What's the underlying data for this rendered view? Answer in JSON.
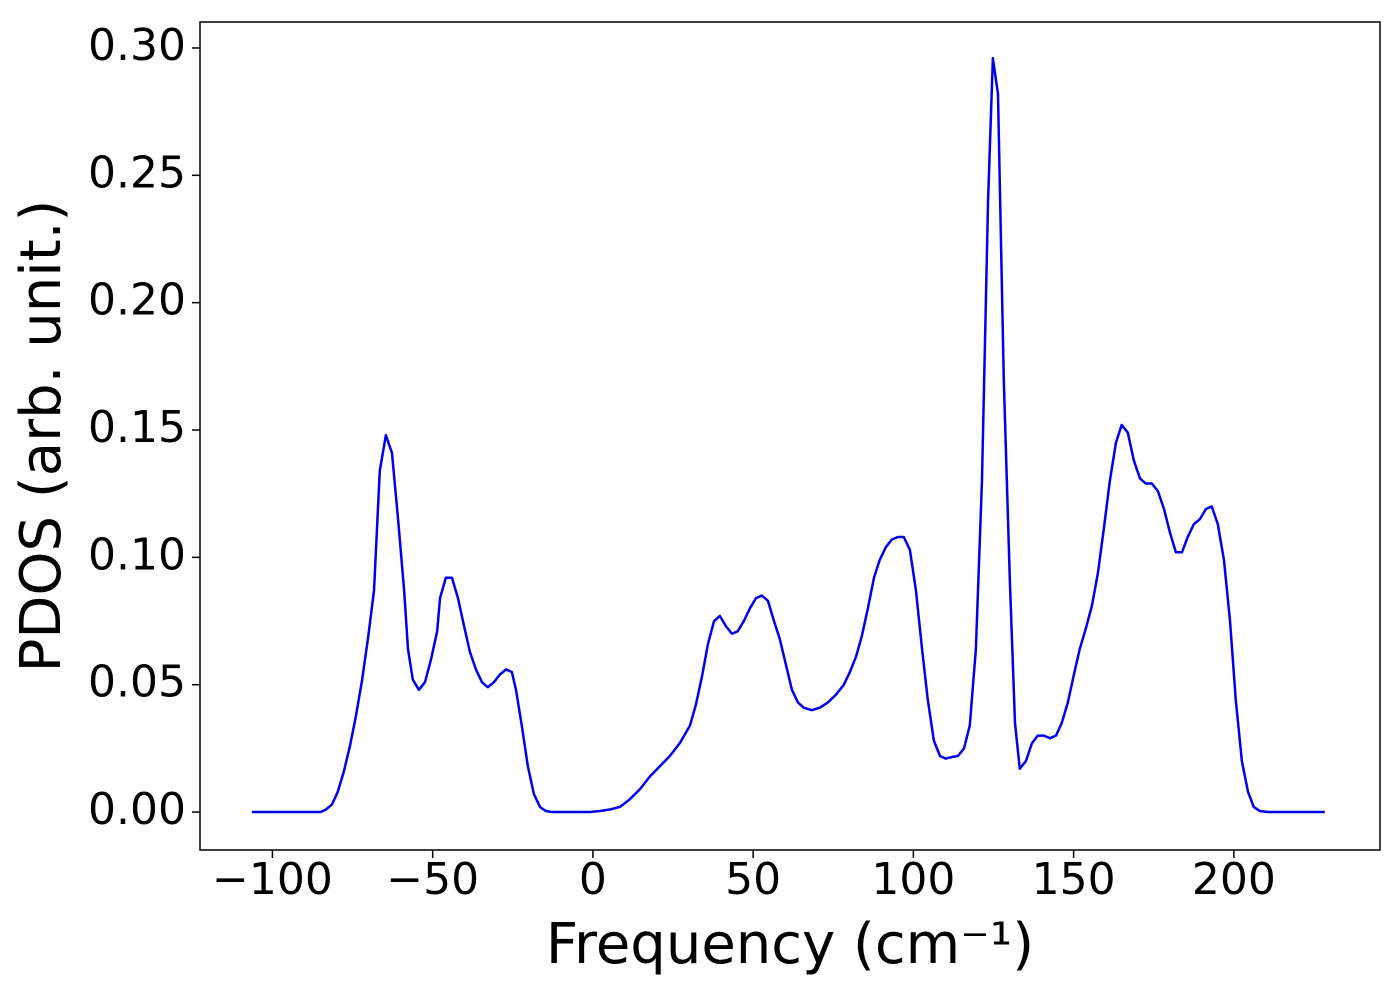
{
  "chart_data": {
    "type": "line",
    "xlabel": "Frequency (cm⁻¹)",
    "ylabel": "PDOS (arb. unit.)",
    "x": [
      -106.4,
      -85,
      -83.3,
      -81.4,
      -79.6,
      -77.7,
      -75.8,
      -73.9,
      -72,
      -70.2,
      -68.3,
      -66.5,
      -64.6,
      -62.7,
      -60.8,
      -58.9,
      -57.7,
      -56.2,
      -54.3,
      -52.4,
      -50.5,
      -48.6,
      -47.7,
      -45.9,
      -44,
      -42.1,
      -40.2,
      -38.4,
      -36.5,
      -34.6,
      -32.8,
      -30.9,
      -29,
      -27.1,
      -25.3,
      -24,
      -22.2,
      -20.3,
      -18.4,
      -16.5,
      -14.7,
      -12.8,
      -1,
      2.2,
      5.3,
      8.4,
      11.5,
      14.7,
      17.8,
      20.9,
      24,
      27.1,
      30.3,
      32.1,
      34,
      35.9,
      37.8,
      39.6,
      41.5,
      43.4,
      45.2,
      47.1,
      49,
      50.9,
      52.7,
      54.6,
      56.5,
      58.3,
      60.2,
      62.1,
      64,
      65.8,
      68.3,
      70.8,
      73.3,
      75.8,
      78.3,
      80.2,
      82.1,
      83.9,
      85.8,
      87.7,
      89.5,
      91.4,
      93.3,
      95.2,
      97,
      98.9,
      100.8,
      102.7,
      104.5,
      106.4,
      108.3,
      110.1,
      112,
      113.9,
      115.8,
      117.6,
      119.5,
      121.4,
      123.3,
      124.8,
      126.4,
      128.2,
      130.1,
      131.7,
      133.2,
      135.1,
      137,
      138.8,
      140.7,
      142.6,
      144.5,
      146.3,
      148.2,
      150.1,
      151.9,
      153.8,
      155.7,
      157.6,
      159.4,
      161.3,
      163.2,
      165,
      166.9,
      168.8,
      170.7,
      172.5,
      174.4,
      176.3,
      178.2,
      180,
      181.9,
      183.8,
      185.6,
      187.5,
      189.4,
      191.3,
      193.1,
      195,
      196.9,
      198.8,
      200.6,
      202.5,
      204.4,
      206.2,
      208.1,
      210.6,
      228.4
    ],
    "series": [
      {
        "name": "PDOS",
        "color": "#0000ee",
        "values": [
          0,
          0,
          0.001,
          0.003,
          0.008,
          0.016,
          0.026,
          0.038,
          0.052,
          0.068,
          0.087,
          0.134,
          0.148,
          0.141,
          0.115,
          0.087,
          0.064,
          0.052,
          0.048,
          0.051,
          0.06,
          0.071,
          0.084,
          0.092,
          0.092,
          0.084,
          0.073,
          0.063,
          0.056,
          0.051,
          0.049,
          0.051,
          0.054,
          0.056,
          0.055,
          0.048,
          0.034,
          0.018,
          0.007,
          0.002,
          0.0004,
          0,
          0,
          0.0004,
          0.001,
          0.002,
          0.005,
          0.009,
          0.014,
          0.018,
          0.022,
          0.027,
          0.034,
          0.042,
          0.053,
          0.066,
          0.075,
          0.077,
          0.073,
          0.07,
          0.071,
          0.075,
          0.08,
          0.084,
          0.085,
          0.083,
          0.075,
          0.068,
          0.058,
          0.048,
          0.043,
          0.041,
          0.04,
          0.041,
          0.043,
          0.046,
          0.05,
          0.055,
          0.061,
          0.069,
          0.08,
          0.092,
          0.099,
          0.104,
          0.107,
          0.108,
          0.108,
          0.103,
          0.087,
          0.064,
          0.044,
          0.028,
          0.022,
          0.021,
          0.0216,
          0.022,
          0.025,
          0.034,
          0.064,
          0.13,
          0.24,
          0.296,
          0.282,
          0.17,
          0.091,
          0.035,
          0.017,
          0.02,
          0.027,
          0.03,
          0.03,
          0.029,
          0.03,
          0.035,
          0.043,
          0.054,
          0.064,
          0.072,
          0.081,
          0.094,
          0.111,
          0.13,
          0.145,
          0.152,
          0.149,
          0.138,
          0.131,
          0.129,
          0.129,
          0.126,
          0.119,
          0.11,
          0.102,
          0.102,
          0.108,
          0.113,
          0.115,
          0.119,
          0.12,
          0.113,
          0.099,
          0.075,
          0.044,
          0.02,
          0.008,
          0.002,
          0.0004,
          0,
          0
        ]
      }
    ],
    "xlim": [
      -122.6,
      245.6
    ],
    "ylim": [
      -0.0149,
      0.3102
    ],
    "xticks": [
      {
        "value": -100,
        "label": "−100"
      },
      {
        "value": -50,
        "label": "−50"
      },
      0,
      50,
      100,
      150,
      200
    ],
    "yticks": [
      {
        "value": 0,
        "label": "0.00"
      },
      {
        "value": 0.05,
        "label": "0.05"
      },
      {
        "value": 0.1,
        "label": "0.10"
      },
      {
        "value": 0.15,
        "label": "0.15"
      },
      {
        "value": 0.2,
        "label": "0.20"
      },
      {
        "value": 0.25,
        "label": "0.25"
      },
      {
        "value": 0.3,
        "label": "0.30"
      }
    ],
    "grid": false
  }
}
